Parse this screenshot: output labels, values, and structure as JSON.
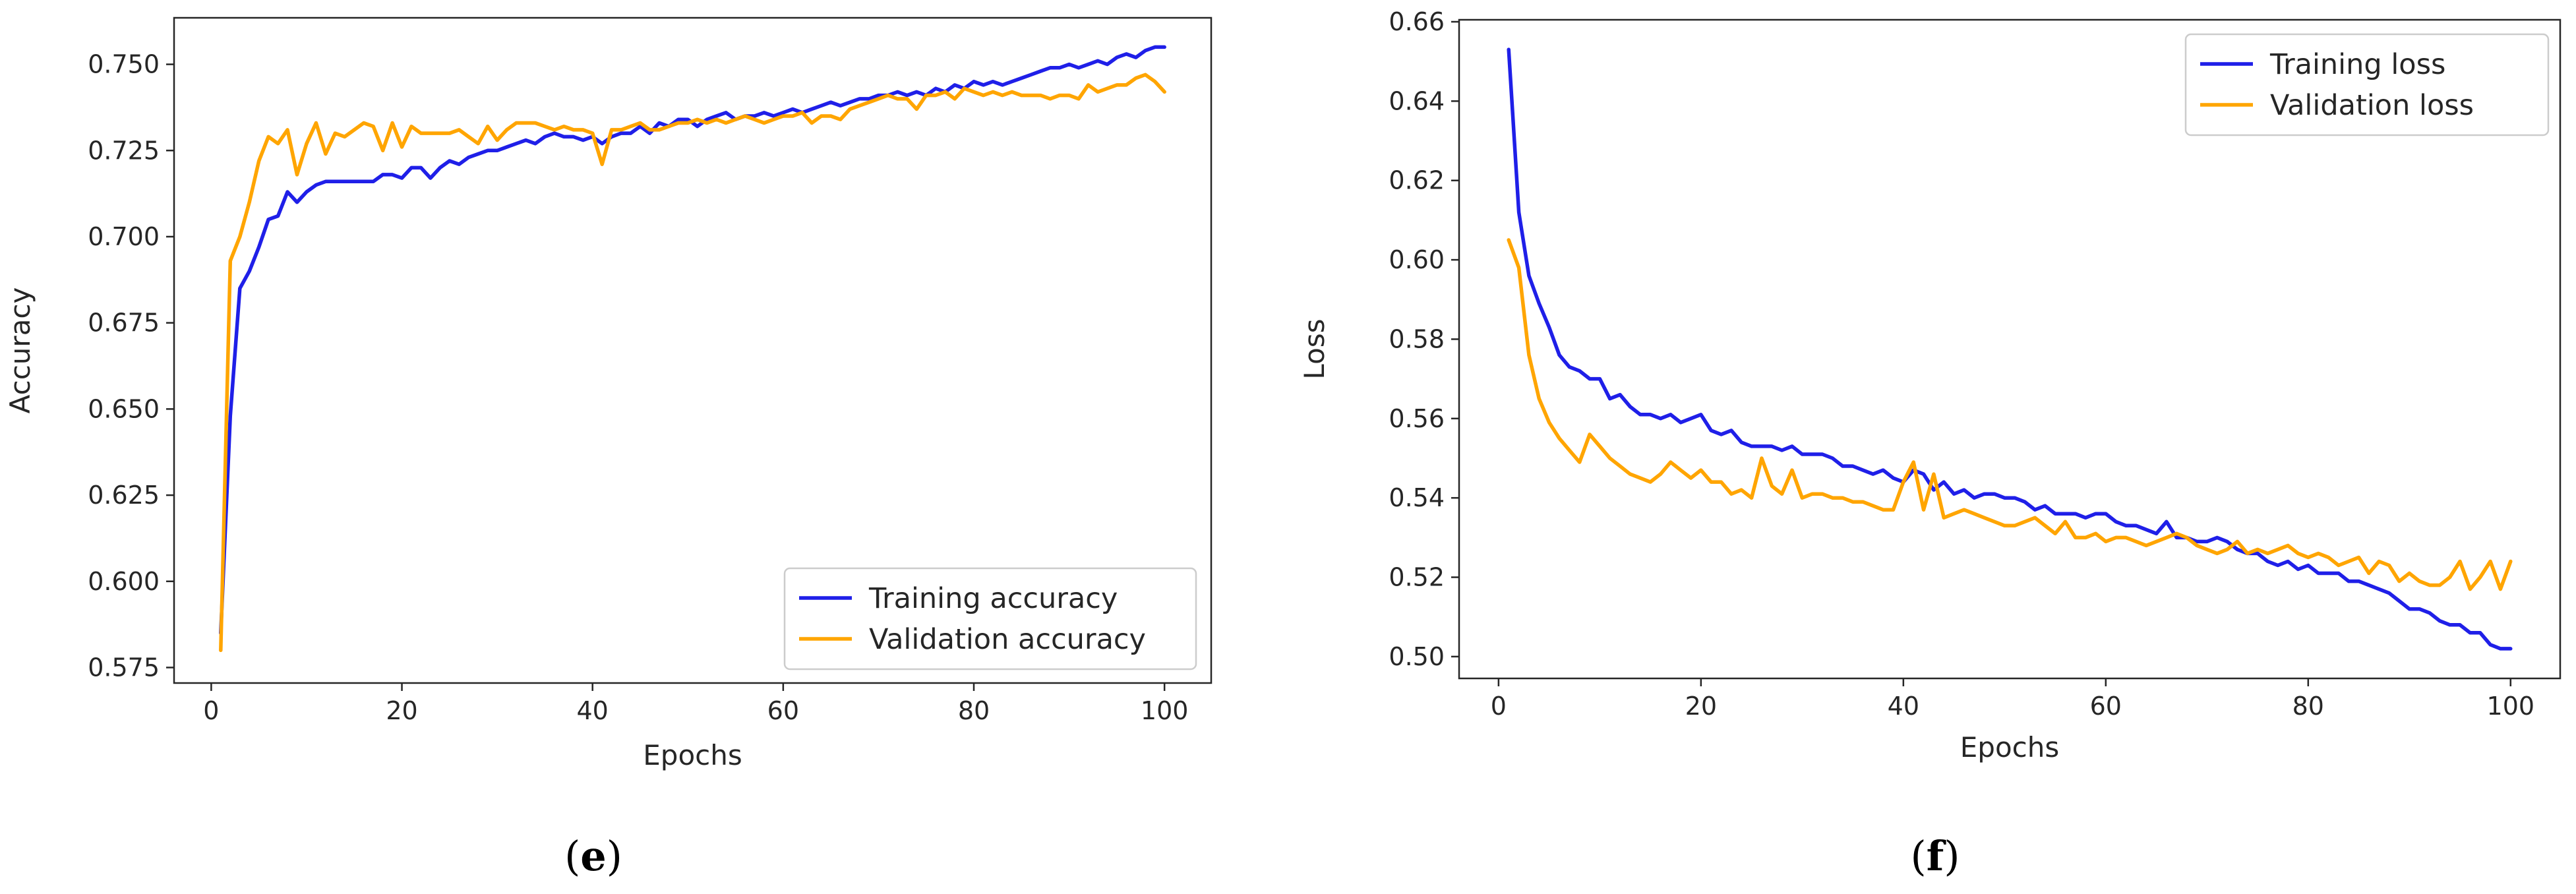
{
  "colors": {
    "training": "#1f1fe8",
    "validation": "#ffa500",
    "axis": "#262626"
  },
  "chart_data": [
    {
      "id": "e",
      "panel_label": "(e)",
      "type": "line",
      "xlabel": "Epochs",
      "ylabel": "Accuracy",
      "xlim": [
        -3.9,
        104.9
      ],
      "ylim": [
        0.5705,
        0.7635
      ],
      "xticks": [
        0,
        20,
        40,
        60,
        80,
        100
      ],
      "yticks": [
        0.575,
        0.6,
        0.625,
        0.65,
        0.675,
        0.7,
        0.725,
        0.75
      ],
      "ytick_labels": [
        "0.575",
        "0.600",
        "0.625",
        "0.650",
        "0.675",
        "0.700",
        "0.725",
        "0.750"
      ],
      "legend_position": "lower-right",
      "x": [
        1,
        2,
        3,
        4,
        5,
        6,
        7,
        8,
        9,
        10,
        11,
        12,
        13,
        14,
        15,
        16,
        17,
        18,
        19,
        20,
        21,
        22,
        23,
        24,
        25,
        26,
        27,
        28,
        29,
        30,
        31,
        32,
        33,
        34,
        35,
        36,
        37,
        38,
        39,
        40,
        41,
        42,
        43,
        44,
        45,
        46,
        47,
        48,
        49,
        50,
        51,
        52,
        53,
        54,
        55,
        56,
        57,
        58,
        59,
        60,
        61,
        62,
        63,
        64,
        65,
        66,
        67,
        68,
        69,
        70,
        71,
        72,
        73,
        74,
        75,
        76,
        77,
        78,
        79,
        80,
        81,
        82,
        83,
        84,
        85,
        86,
        87,
        88,
        89,
        90,
        91,
        92,
        93,
        94,
        95,
        96,
        97,
        98,
        99,
        100
      ],
      "series": [
        {
          "name": "Training accuracy",
          "color_key": "training",
          "values": [
            0.585,
            0.648,
            0.685,
            0.69,
            0.697,
            0.705,
            0.706,
            0.713,
            0.71,
            0.713,
            0.715,
            0.716,
            0.716,
            0.716,
            0.716,
            0.716,
            0.716,
            0.718,
            0.718,
            0.717,
            0.72,
            0.72,
            0.717,
            0.72,
            0.722,
            0.721,
            0.723,
            0.724,
            0.725,
            0.725,
            0.726,
            0.727,
            0.728,
            0.727,
            0.729,
            0.73,
            0.729,
            0.729,
            0.728,
            0.729,
            0.727,
            0.729,
            0.73,
            0.73,
            0.732,
            0.73,
            0.733,
            0.732,
            0.734,
            0.734,
            0.732,
            0.734,
            0.735,
            0.736,
            0.734,
            0.735,
            0.735,
            0.736,
            0.735,
            0.736,
            0.737,
            0.736,
            0.737,
            0.738,
            0.739,
            0.738,
            0.739,
            0.74,
            0.74,
            0.741,
            0.741,
            0.742,
            0.741,
            0.742,
            0.741,
            0.743,
            0.742,
            0.744,
            0.743,
            0.745,
            0.744,
            0.745,
            0.744,
            0.745,
            0.746,
            0.747,
            0.748,
            0.749,
            0.749,
            0.75,
            0.749,
            0.75,
            0.751,
            0.75,
            0.752,
            0.753,
            0.752,
            0.754,
            0.755,
            0.755
          ]
        },
        {
          "name": "Validation accuracy",
          "color_key": "validation",
          "values": [
            0.58,
            0.693,
            0.7,
            0.71,
            0.722,
            0.729,
            0.727,
            0.731,
            0.718,
            0.727,
            0.733,
            0.724,
            0.73,
            0.729,
            0.731,
            0.733,
            0.732,
            0.725,
            0.733,
            0.726,
            0.732,
            0.73,
            0.73,
            0.73,
            0.73,
            0.731,
            0.729,
            0.727,
            0.732,
            0.728,
            0.731,
            0.733,
            0.733,
            0.733,
            0.732,
            0.731,
            0.732,
            0.731,
            0.731,
            0.73,
            0.721,
            0.731,
            0.731,
            0.732,
            0.733,
            0.731,
            0.731,
            0.732,
            0.733,
            0.733,
            0.734,
            0.733,
            0.734,
            0.733,
            0.734,
            0.735,
            0.734,
            0.733,
            0.734,
            0.735,
            0.735,
            0.736,
            0.733,
            0.735,
            0.735,
            0.734,
            0.737,
            0.738,
            0.739,
            0.74,
            0.741,
            0.74,
            0.74,
            0.737,
            0.741,
            0.741,
            0.742,
            0.74,
            0.743,
            0.742,
            0.741,
            0.742,
            0.741,
            0.742,
            0.741,
            0.741,
            0.741,
            0.74,
            0.741,
            0.741,
            0.74,
            0.744,
            0.742,
            0.743,
            0.744,
            0.744,
            0.746,
            0.747,
            0.745,
            0.742
          ]
        }
      ]
    },
    {
      "id": "f",
      "panel_label": "(f)",
      "type": "line",
      "xlabel": "Epochs",
      "ylabel": "Loss",
      "xlim": [
        -3.9,
        104.9
      ],
      "ylim": [
        0.4945,
        0.6605
      ],
      "xticks": [
        0,
        20,
        40,
        60,
        80,
        100
      ],
      "yticks": [
        0.5,
        0.52,
        0.54,
        0.56,
        0.58,
        0.6,
        0.62,
        0.64,
        0.66
      ],
      "ytick_labels": [
        "0.50",
        "0.52",
        "0.54",
        "0.56",
        "0.58",
        "0.60",
        "0.62",
        "0.64",
        "0.66"
      ],
      "legend_position": "upper-right",
      "x": [
        1,
        2,
        3,
        4,
        5,
        6,
        7,
        8,
        9,
        10,
        11,
        12,
        13,
        14,
        15,
        16,
        17,
        18,
        19,
        20,
        21,
        22,
        23,
        24,
        25,
        26,
        27,
        28,
        29,
        30,
        31,
        32,
        33,
        34,
        35,
        36,
        37,
        38,
        39,
        40,
        41,
        42,
        43,
        44,
        45,
        46,
        47,
        48,
        49,
        50,
        51,
        52,
        53,
        54,
        55,
        56,
        57,
        58,
        59,
        60,
        61,
        62,
        63,
        64,
        65,
        66,
        67,
        68,
        69,
        70,
        71,
        72,
        73,
        74,
        75,
        76,
        77,
        78,
        79,
        80,
        81,
        82,
        83,
        84,
        85,
        86,
        87,
        88,
        89,
        90,
        91,
        92,
        93,
        94,
        95,
        96,
        97,
        98,
        99,
        100
      ],
      "series": [
        {
          "name": "Training loss",
          "color_key": "training",
          "values": [
            0.653,
            0.612,
            0.596,
            0.589,
            0.583,
            0.576,
            0.573,
            0.572,
            0.57,
            0.57,
            0.565,
            0.566,
            0.563,
            0.561,
            0.561,
            0.56,
            0.561,
            0.559,
            0.56,
            0.561,
            0.557,
            0.556,
            0.557,
            0.554,
            0.553,
            0.553,
            0.553,
            0.552,
            0.553,
            0.551,
            0.551,
            0.551,
            0.55,
            0.548,
            0.548,
            0.547,
            0.546,
            0.547,
            0.545,
            0.544,
            0.547,
            0.546,
            0.542,
            0.544,
            0.541,
            0.542,
            0.54,
            0.541,
            0.541,
            0.54,
            0.54,
            0.539,
            0.537,
            0.538,
            0.536,
            0.536,
            0.536,
            0.535,
            0.536,
            0.536,
            0.534,
            0.533,
            0.533,
            0.532,
            0.531,
            0.534,
            0.53,
            0.53,
            0.529,
            0.529,
            0.53,
            0.529,
            0.527,
            0.526,
            0.526,
            0.524,
            0.523,
            0.524,
            0.522,
            0.523,
            0.521,
            0.521,
            0.521,
            0.519,
            0.519,
            0.518,
            0.517,
            0.516,
            0.514,
            0.512,
            0.512,
            0.511,
            0.509,
            0.508,
            0.508,
            0.506,
            0.506,
            0.503,
            0.502,
            0.502
          ]
        },
        {
          "name": "Validation loss",
          "color_key": "validation",
          "values": [
            0.605,
            0.598,
            0.576,
            0.565,
            0.559,
            0.555,
            0.552,
            0.549,
            0.556,
            0.553,
            0.55,
            0.548,
            0.546,
            0.545,
            0.544,
            0.546,
            0.549,
            0.547,
            0.545,
            0.547,
            0.544,
            0.544,
            0.541,
            0.542,
            0.54,
            0.55,
            0.543,
            0.541,
            0.547,
            0.54,
            0.541,
            0.541,
            0.54,
            0.54,
            0.539,
            0.539,
            0.538,
            0.537,
            0.537,
            0.544,
            0.549,
            0.537,
            0.546,
            0.535,
            0.536,
            0.537,
            0.536,
            0.535,
            0.534,
            0.533,
            0.533,
            0.534,
            0.535,
            0.533,
            0.531,
            0.534,
            0.53,
            0.53,
            0.531,
            0.529,
            0.53,
            0.53,
            0.529,
            0.528,
            0.529,
            0.53,
            0.531,
            0.53,
            0.528,
            0.527,
            0.526,
            0.527,
            0.529,
            0.526,
            0.527,
            0.526,
            0.527,
            0.528,
            0.526,
            0.525,
            0.526,
            0.525,
            0.523,
            0.524,
            0.525,
            0.521,
            0.524,
            0.523,
            0.519,
            0.521,
            0.519,
            0.518,
            0.518,
            0.52,
            0.524,
            0.517,
            0.52,
            0.524,
            0.517,
            0.524
          ]
        }
      ]
    }
  ]
}
